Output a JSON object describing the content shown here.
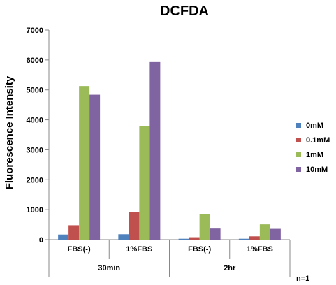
{
  "chart_data": {
    "type": "bar",
    "title": "DCFDA",
    "ylabel": "Fluorescence Intensity",
    "xlabel": "",
    "ylim": [
      0,
      7000
    ],
    "yticks": [
      "0",
      "1000",
      "2000",
      "3000",
      "4000",
      "5000",
      "6000",
      "7000"
    ],
    "categories": [
      "FBS(-)",
      "1%FBS",
      "FBS(-)",
      "1%FBS"
    ],
    "groups": [
      {
        "label": "30min",
        "span": 2
      },
      {
        "label": "2hr",
        "span": 2
      }
    ],
    "series": [
      {
        "name": "0mM",
        "color": "#4f81bd",
        "values": [
          170,
          180,
          30,
          30
        ]
      },
      {
        "name": "0.1mM",
        "color": "#c0504d",
        "values": [
          480,
          920,
          80,
          110
        ]
      },
      {
        "name": "1mM",
        "color": "#9bbb59",
        "values": [
          5130,
          3780,
          850,
          510
        ]
      },
      {
        "name": "10mM",
        "color": "#8064a2",
        "values": [
          4840,
          5930,
          370,
          360
        ]
      }
    ],
    "legend_position": "right",
    "grid": false,
    "note": "n=1"
  }
}
